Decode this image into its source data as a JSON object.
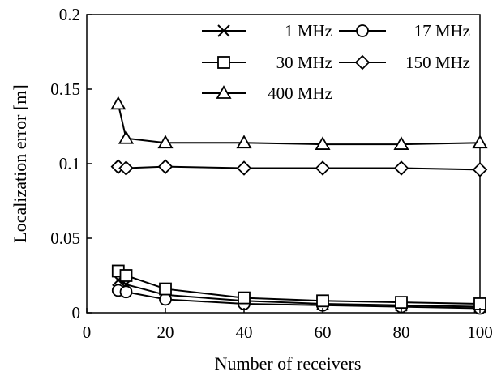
{
  "chart_data": {
    "type": "line",
    "xlabel": "Number of receivers",
    "ylabel": "Localization error [m]",
    "xlim": [
      0,
      100
    ],
    "ylim": [
      0,
      0.2
    ],
    "xticks": [
      0,
      20,
      40,
      60,
      80,
      100
    ],
    "yticks": [
      0,
      0.05,
      0.1,
      0.15,
      0.2
    ],
    "xtick_labels": [
      "0",
      "20",
      "40",
      "60",
      "80",
      "100"
    ],
    "ytick_labels": [
      "0",
      "0.05",
      "0.1",
      "0.15",
      "0.2"
    ],
    "grid": false,
    "legend": "top-right",
    "x": [
      8,
      10,
      20,
      40,
      60,
      80,
      100
    ],
    "series": [
      {
        "name": "1 MHz",
        "marker": "x",
        "values": [
          0.022,
          0.019,
          0.012,
          0.008,
          0.006,
          0.005,
          0.004
        ]
      },
      {
        "name": "17 MHz",
        "marker": "circle",
        "values": [
          0.015,
          0.014,
          0.009,
          0.006,
          0.005,
          0.004,
          0.003
        ]
      },
      {
        "name": "30 MHz",
        "marker": "square",
        "values": [
          0.028,
          0.025,
          0.016,
          0.01,
          0.008,
          0.007,
          0.006
        ]
      },
      {
        "name": "150 MHz",
        "marker": "diamond",
        "values": [
          0.098,
          0.097,
          0.098,
          0.097,
          0.097,
          0.097,
          0.096
        ]
      },
      {
        "name": "400 MHz",
        "marker": "triangle",
        "values": [
          0.14,
          0.117,
          0.114,
          0.114,
          0.113,
          0.113,
          0.114
        ]
      }
    ]
  }
}
